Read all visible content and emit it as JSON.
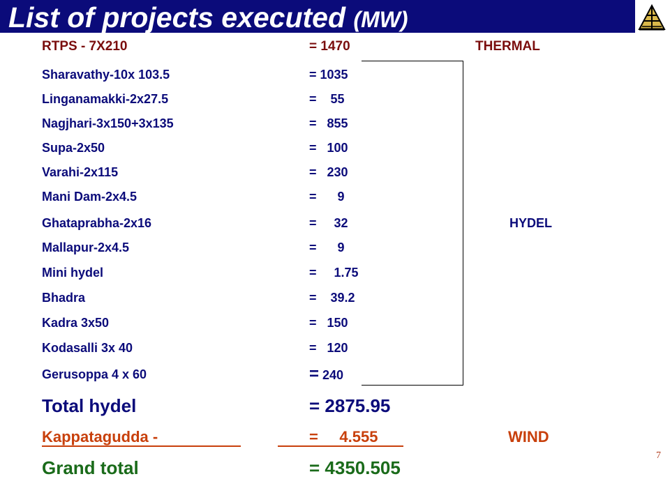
{
  "title": {
    "main": "List of  projects executed ",
    "unit": "(MW)"
  },
  "logo": {
    "icon": "tower-logo-icon"
  },
  "rtps": {
    "name": "RTPS -  7X210",
    "value": "= 1470",
    "category": "THERMAL"
  },
  "projects": [
    {
      "name": "Sharavathy-10x  103.5",
      "value": "= 1035"
    },
    {
      "name": "Linganamakki-2x27.5",
      "value": "=    55"
    },
    {
      "name": "Nagjhari-3x150+3x135",
      "value": "=   855"
    },
    {
      "name": "Supa-2x50",
      "value": "=   100"
    },
    {
      "name": "Varahi-2x115",
      "value": "=   230"
    },
    {
      "name": "Mani Dam-2x4.5",
      "value": "=      9"
    },
    {
      "name": "Ghataprabha-2x16",
      "value": "=     32"
    },
    {
      "name": "Mallapur-2x4.5",
      "value": "=      9"
    },
    {
      "name": "Mini hydel",
      "value": "=     1.75"
    },
    {
      "name": "Bhadra",
      "value": "=    39.2"
    },
    {
      "name": "Kadra    3x50",
      "value": "=   150"
    },
    {
      "name": "Kodasalli  3x 40",
      "value": "=   120"
    },
    {
      "name": "Gerusoppa 4 x 60",
      "eq": "=",
      "num": " 240"
    }
  ],
  "hydel_label": "HYDEL",
  "total_hydel": {
    "name": "Total hydel",
    "value": "= 2875.95"
  },
  "wind": {
    "name": "Kappatagudda  -",
    "value": "=     4.555",
    "category": "WIND"
  },
  "grand_total": {
    "name": "Grand total",
    "value": "= 4350.505"
  },
  "page_number": "7"
}
